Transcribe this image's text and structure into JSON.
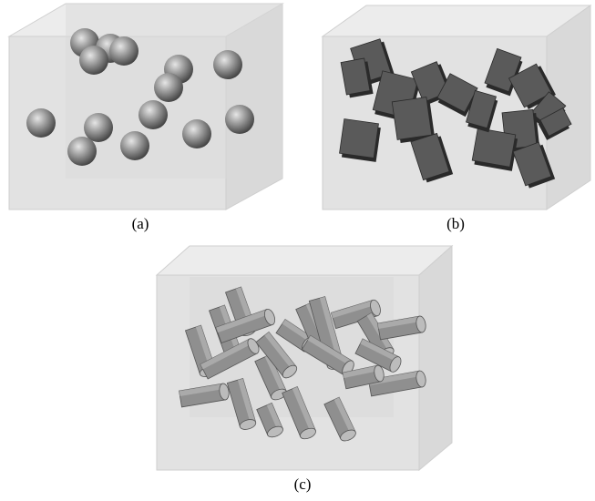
{
  "panels": [
    {
      "id": "a",
      "caption": "(a)",
      "contents": "spheres"
    },
    {
      "id": "b",
      "caption": "(b)",
      "contents": "plates"
    },
    {
      "id": "c",
      "caption": "(c)",
      "contents": "cylinders"
    }
  ],
  "colors": {
    "box_fill": "#e4e4e4",
    "box_edge": "#c4c4c4",
    "sphere_dark": "#4d4d4d",
    "sphere_light": "#cfcfcf",
    "plate_face": "#565656",
    "plate_edge": "#2a2a2a",
    "cylinder_body": "#8f8f8f",
    "cylinder_cap": "#b8b8b8"
  },
  "icons": [
    "sphere-particle",
    "plate-particle",
    "cylinder-particle"
  ]
}
